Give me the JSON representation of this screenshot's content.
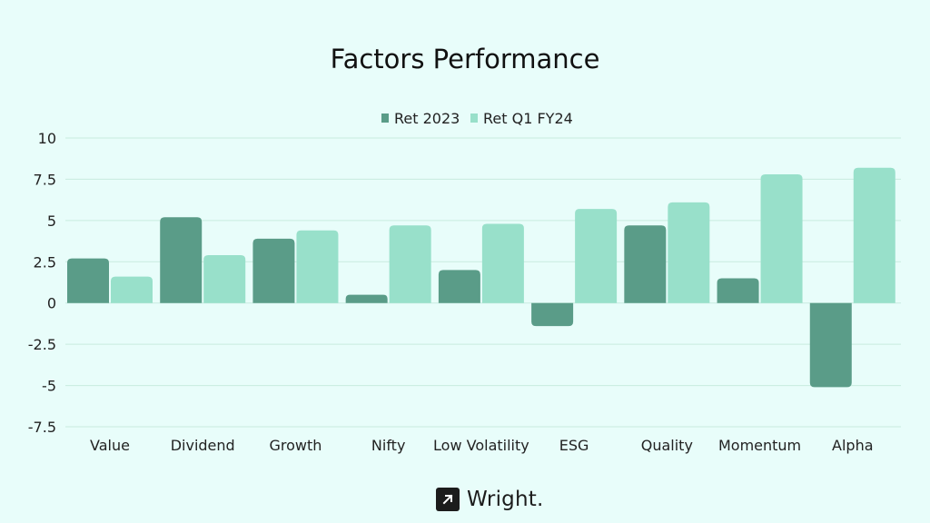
{
  "chart_data": {
    "type": "bar",
    "title": "Factors Performance",
    "xlabel": "",
    "ylabel": "",
    "categories": [
      "Value",
      "Dividend",
      "Growth",
      "Nifty",
      "Low Volatility",
      "ESG",
      "Quality",
      "Momentum",
      "Alpha"
    ],
    "series": [
      {
        "name": "Ret 2023",
        "color": "#5a9c88",
        "values": [
          2.7,
          5.2,
          3.9,
          0.5,
          2.0,
          -1.4,
          4.7,
          1.5,
          -5.1
        ]
      },
      {
        "name": "Ret Q1 FY24",
        "color": "#98e0ca",
        "values": [
          1.6,
          2.9,
          4.4,
          4.7,
          4.8,
          5.7,
          6.1,
          7.8,
          8.2
        ]
      }
    ],
    "ylim": [
      -7.5,
      10
    ],
    "yticks": [
      "10",
      "7.5",
      "5",
      "2.5",
      "0",
      "-2.5",
      "-5",
      "-7.5"
    ],
    "ytick_values": [
      10,
      7.5,
      5,
      2.5,
      0,
      -2.5,
      -5,
      -7.5
    ],
    "grid": true,
    "legend": "top-center"
  },
  "brand": {
    "name": "Wright.",
    "icon": "arrow-up-right-icon"
  }
}
